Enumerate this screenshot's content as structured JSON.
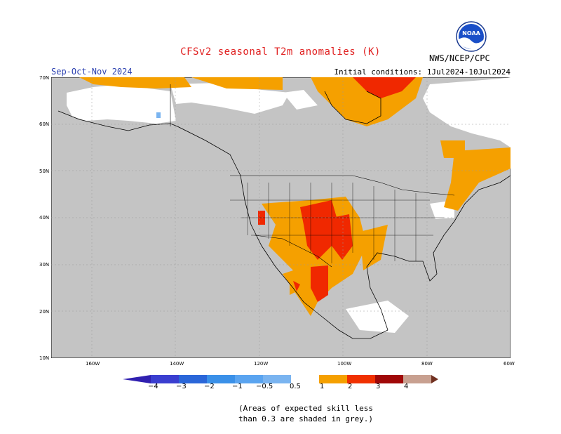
{
  "header": {
    "title": "CFSv2 seasonal T2m anomalies (K)",
    "season": "Sep-Oct-Nov 2024",
    "initial_conditions": "Initial conditions: 1Jul2024-10Jul2024",
    "agency": "NWS/NCEP/CPC",
    "logo_text": "NOAA"
  },
  "map": {
    "lat_labels": [
      "70N",
      "60N",
      "50N",
      "40N",
      "30N",
      "20N",
      "10N"
    ],
    "lon_labels": [
      "160W",
      "140W",
      "120W",
      "100W",
      "80W",
      "60W"
    ],
    "colors": {
      "ocean_land_low_skill": "#c4c4c4",
      "high_skill_neutral": "#ffffff",
      "anom_0_5_to_1": "#f5a000",
      "anom_1_to_2": "#f02800",
      "anom_below_0_5": "#7ab4f0"
    }
  },
  "colorbar": {
    "labels": [
      "−4",
      "−3",
      "−2",
      "−1",
      "−0.5",
      "0.5",
      "1",
      "2",
      "3",
      "4"
    ],
    "colors": [
      "#3020b0",
      "#3a3ed0",
      "#2a66d8",
      "#3a90e8",
      "#7ab4f0",
      "#ffffff",
      "#f5a000",
      "#f03000",
      "#a00808",
      "#c8a090",
      "#703020"
    ]
  },
  "footnote": {
    "line1": "(Areas of expected skill less",
    "line2": "than 0.3 are shaded in grey.)"
  }
}
